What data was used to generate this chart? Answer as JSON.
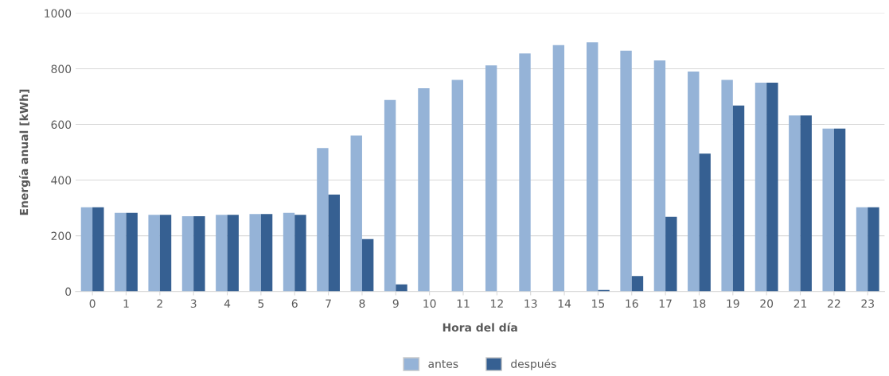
{
  "chart_data": {
    "type": "bar",
    "xlabel": "Hora del día",
    "ylabel": "Energía anual [kWh]",
    "categories": [
      "0",
      "1",
      "2",
      "3",
      "4",
      "5",
      "6",
      "7",
      "8",
      "9",
      "10",
      "11",
      "12",
      "13",
      "14",
      "15",
      "16",
      "17",
      "18",
      "19",
      "20",
      "21",
      "22",
      "23"
    ],
    "series": [
      {
        "name": "antes",
        "color": "#95b3d7",
        "values": [
          302,
          282,
          275,
          270,
          275,
          278,
          282,
          515,
          560,
          688,
          730,
          760,
          812,
          855,
          885,
          895,
          865,
          830,
          790,
          760,
          750,
          632,
          585,
          302
        ]
      },
      {
        "name": "después",
        "color": "#366092",
        "values": [
          302,
          282,
          275,
          270,
          275,
          278,
          275,
          348,
          188,
          25,
          0,
          0,
          0,
          0,
          0,
          5,
          55,
          268,
          495,
          668,
          750,
          632,
          585,
          302
        ]
      }
    ],
    "ylim": [
      0,
      1000
    ],
    "yticks": [
      0,
      200,
      400,
      600,
      800,
      1000
    ],
    "grid": "y",
    "legend": "bottom"
  }
}
